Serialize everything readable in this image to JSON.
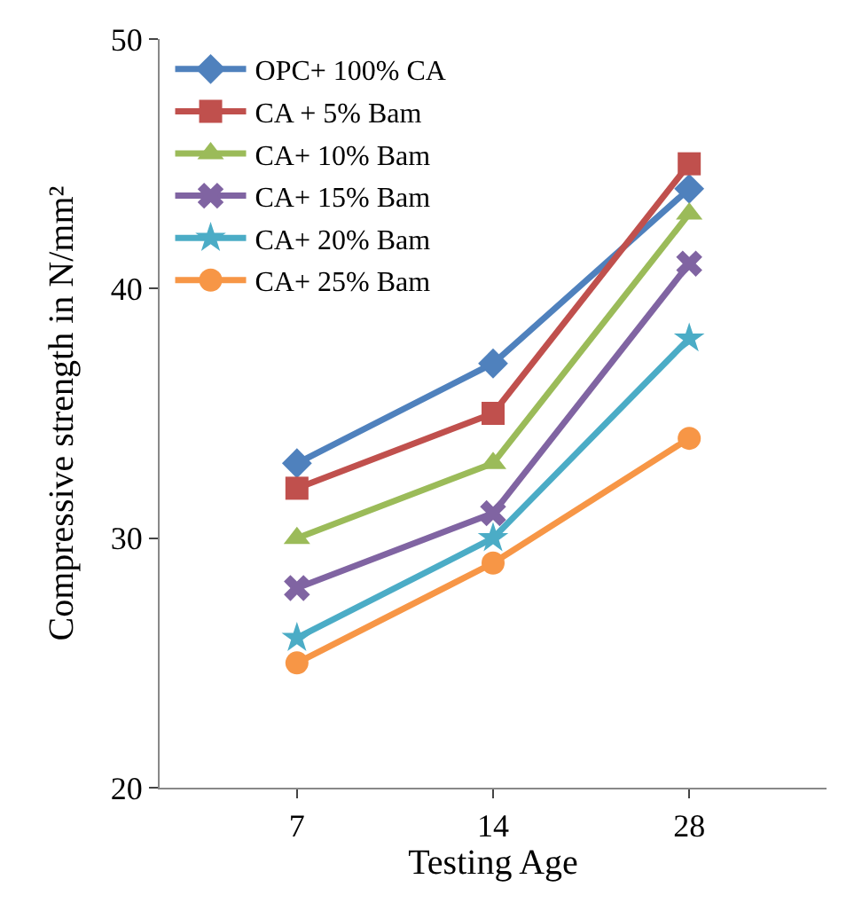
{
  "chart_data": {
    "type": "line",
    "xlabel": "Testing Age",
    "ylabel": "Compressive strength in N/mm²",
    "categories": [
      "7",
      "14",
      "28"
    ],
    "ylim": [
      20,
      50
    ],
    "yticks": [
      20,
      30,
      40,
      50
    ],
    "grid": false,
    "legend": "top left",
    "line_style": "solid",
    "series": [
      {
        "name": "OPC+ 100% CA",
        "color": "#4f81bd",
        "marker": "diamond",
        "values": [
          33,
          37,
          44
        ]
      },
      {
        "name": "CA + 5% Bam",
        "color": "#c0504d",
        "marker": "square",
        "values": [
          32,
          35,
          45
        ]
      },
      {
        "name": "CA+ 10% Bam",
        "color": "#9bbb59",
        "marker": "triangle",
        "values": [
          30,
          33,
          43
        ]
      },
      {
        "name": "CA+ 15% Bam",
        "color": "#8064a2",
        "marker": "cross",
        "values": [
          28,
          31,
          41
        ]
      },
      {
        "name": "CA+ 20% Bam",
        "color": "#4bacc6",
        "marker": "star",
        "values": [
          26,
          30,
          38
        ]
      },
      {
        "name": "CA+ 25% Bam",
        "color": "#f79646",
        "marker": "circle",
        "values": [
          25,
          29,
          34
        ]
      }
    ]
  }
}
